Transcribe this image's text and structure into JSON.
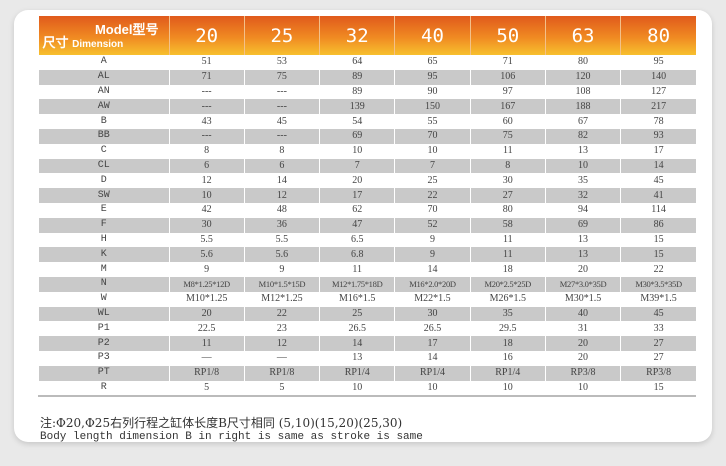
{
  "header": {
    "model_label": "Model型号",
    "dim_cn": "尺寸",
    "dim_en": "Dimension",
    "models": [
      "20",
      "25",
      "32",
      "40",
      "50",
      "63",
      "80"
    ]
  },
  "rows": [
    {
      "label": "A",
      "values": [
        "51",
        "53",
        "64",
        "65",
        "71",
        "80",
        "95"
      ]
    },
    {
      "label": "AL",
      "values": [
        "71",
        "75",
        "89",
        "95",
        "106",
        "120",
        "140"
      ]
    },
    {
      "label": "AN",
      "values": [
        "---",
        "---",
        "89",
        "90",
        "97",
        "108",
        "127"
      ]
    },
    {
      "label": "AW",
      "values": [
        "---",
        "---",
        "139",
        "150",
        "167",
        "188",
        "217"
      ]
    },
    {
      "label": "B",
      "values": [
        "43",
        "45",
        "54",
        "55",
        "60",
        "67",
        "78"
      ]
    },
    {
      "label": "BB",
      "values": [
        "---",
        "---",
        "69",
        "70",
        "75",
        "82",
        "93"
      ]
    },
    {
      "label": "C",
      "values": [
        "8",
        "8",
        "10",
        "10",
        "11",
        "13",
        "17"
      ]
    },
    {
      "label": "CL",
      "values": [
        "6",
        "6",
        "7",
        "7",
        "8",
        "10",
        "14"
      ]
    },
    {
      "label": "D",
      "values": [
        "12",
        "14",
        "20",
        "25",
        "30",
        "35",
        "45"
      ]
    },
    {
      "label": "SW",
      "values": [
        "10",
        "12",
        "17",
        "22",
        "27",
        "32",
        "41"
      ]
    },
    {
      "label": "E",
      "values": [
        "42",
        "48",
        "62",
        "70",
        "80",
        "94",
        "114"
      ]
    },
    {
      "label": "F",
      "values": [
        "30",
        "36",
        "47",
        "52",
        "58",
        "69",
        "86"
      ]
    },
    {
      "label": "H",
      "values": [
        "5.5",
        "5.5",
        "6.5",
        "9",
        "11",
        "13",
        "15"
      ]
    },
    {
      "label": "K",
      "values": [
        "5.6",
        "5.6",
        "6.8",
        "9",
        "11",
        "13",
        "15"
      ]
    },
    {
      "label": "M",
      "values": [
        "9",
        "9",
        "11",
        "14",
        "18",
        "20",
        "22"
      ]
    },
    {
      "label": "N",
      "values": [
        "M8*1.25*12D",
        "M10*1.5*15D",
        "M12*1.75*18D",
        "M16*2.0*20D",
        "M20*2.5*25D",
        "M27*3.0*35D",
        "M30*3.5*35D"
      ]
    },
    {
      "label": "W",
      "values": [
        "M10*1.25",
        "M12*1.25",
        "M16*1.5",
        "M22*1.5",
        "M26*1.5",
        "M30*1.5",
        "M39*1.5"
      ]
    },
    {
      "label": "WL",
      "values": [
        "20",
        "22",
        "25",
        "30",
        "35",
        "40",
        "45"
      ]
    },
    {
      "label": "P1",
      "values": [
        "22.5",
        "23",
        "26.5",
        "26.5",
        "29.5",
        "31",
        "33"
      ]
    },
    {
      "label": "P2",
      "values": [
        "11",
        "12",
        "14",
        "17",
        "18",
        "20",
        "27"
      ]
    },
    {
      "label": "P3",
      "values": [
        "—",
        "—",
        "13",
        "14",
        "16",
        "20",
        "27"
      ]
    },
    {
      "label": "PT",
      "values": [
        "RP1/8",
        "RP1/8",
        "RP1/4",
        "RP1/4",
        "RP1/4",
        "RP3/8",
        "RP3/8"
      ]
    },
    {
      "label": "R",
      "values": [
        "5",
        "5",
        "10",
        "10",
        "10",
        "10",
        "15"
      ]
    }
  ],
  "notes": {
    "cn": "注:Φ20,Φ25右列行程之缸体长度B尺寸相同 (5,10)(15,20)(25,30)",
    "en": "Body length dimension B in right is same as stroke is same"
  }
}
